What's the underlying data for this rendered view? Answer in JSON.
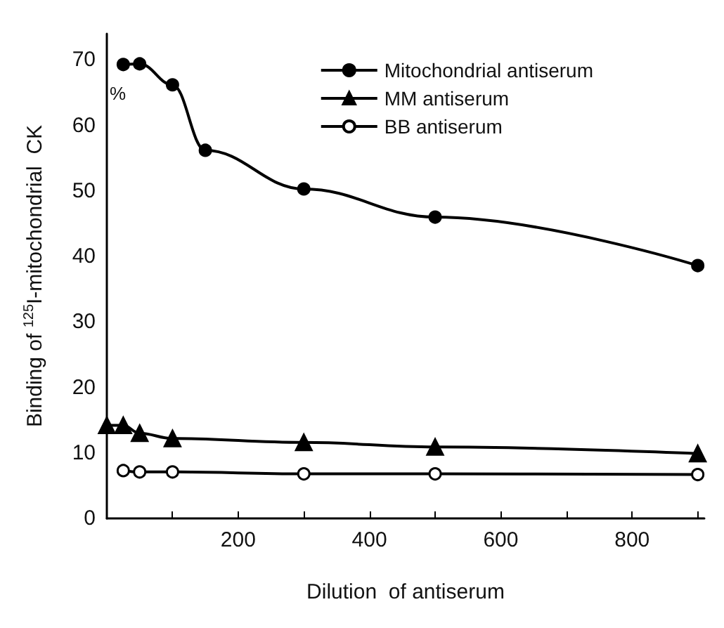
{
  "chart_data": {
    "type": "line",
    "xlabel": "Dilution  of antiserum",
    "ylabel": "Binding of $^{125}$I-mitochondrial  CK",
    "annotations": [
      "%"
    ],
    "xlim": [
      0,
      910
    ],
    "xticks": [
      {
        "value": 100,
        "label": null
      },
      200,
      {
        "value": 300,
        "label": null
      },
      400,
      {
        "value": 500,
        "label": null
      },
      600,
      {
        "value": 700,
        "label": null
      },
      800,
      {
        "value": 900,
        "label": null
      }
    ],
    "ylim": [
      0,
      74
    ],
    "yticks": [
      0,
      10,
      20,
      30,
      40,
      50,
      60,
      70
    ],
    "grid": false,
    "legend": "top right",
    "line_style": "solid",
    "series": [
      {
        "name": "Mitochondrial antiserum",
        "color": "#000000",
        "marker": "circle",
        "x": [
          25,
          50,
          100,
          150,
          300,
          500,
          900
        ],
        "values": [
          69.3,
          69.4,
          66.2,
          56.2,
          50.3,
          46.0,
          38.6
        ]
      },
      {
        "name": "MM antiserum",
        "color": "#000000",
        "marker": "triangle",
        "x": [
          0,
          25,
          50,
          100,
          300,
          500,
          900
        ],
        "values": [
          14.2,
          14.2,
          13.0,
          12.2,
          11.6,
          10.9,
          9.9
        ]
      },
      {
        "name": "BB antiserum",
        "color": "#000000",
        "marker": "open circle",
        "x": [
          25,
          50,
          100,
          300,
          500,
          900
        ],
        "values": [
          7.3,
          7.1,
          7.1,
          6.8,
          6.8,
          6.7
        ]
      }
    ]
  }
}
